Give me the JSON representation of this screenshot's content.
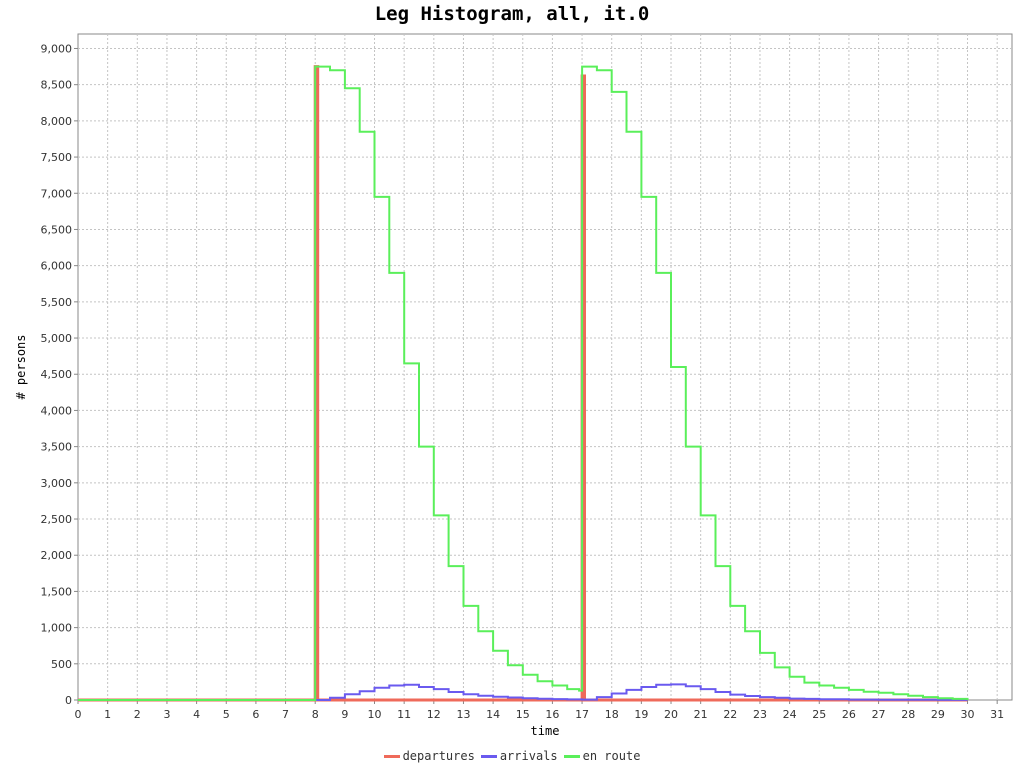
{
  "chart_data": {
    "type": "line",
    "title": "Leg Histogram, all, it.0",
    "xlabel": "time",
    "ylabel": "# persons",
    "xlim": [
      0,
      31.5
    ],
    "ylim": [
      0,
      9200
    ],
    "x_ticks": [
      0,
      1,
      2,
      3,
      4,
      5,
      6,
      7,
      8,
      9,
      10,
      11,
      12,
      13,
      14,
      15,
      16,
      17,
      18,
      19,
      20,
      21,
      22,
      23,
      24,
      25,
      26,
      27,
      28,
      29,
      30,
      31
    ],
    "y_ticks": [
      0,
      500,
      1000,
      1500,
      2000,
      2500,
      3000,
      3500,
      4000,
      4500,
      5000,
      5500,
      6000,
      6500,
      7000,
      7500,
      8000,
      8500,
      9000
    ],
    "y_tick_labels": [
      "0",
      "500",
      "1,000",
      "1,500",
      "2,000",
      "2,500",
      "3,000",
      "3,500",
      "4,000",
      "4,500",
      "5,000",
      "5,500",
      "6,000",
      "6,500",
      "7,000",
      "7,500",
      "8,000",
      "8,500",
      "9,000"
    ],
    "grid": true,
    "legend_position": "bottom-center",
    "series": [
      {
        "name": "departures",
        "color": "#ef6a5a",
        "points": [
          [
            0,
            0
          ],
          [
            8,
            0
          ],
          [
            8,
            8750
          ],
          [
            8.083,
            8750
          ],
          [
            8.083,
            0
          ],
          [
            17,
            0
          ],
          [
            17,
            8620
          ],
          [
            17.083,
            8620
          ],
          [
            17.083,
            0
          ],
          [
            30,
            0
          ]
        ]
      },
      {
        "name": "arrivals",
        "color": "#6a5aef",
        "points": [
          [
            0,
            0
          ],
          [
            8,
            0
          ],
          [
            8.5,
            30
          ],
          [
            9,
            80
          ],
          [
            9.5,
            120
          ],
          [
            10,
            170
          ],
          [
            10.5,
            200
          ],
          [
            11,
            210
          ],
          [
            11.5,
            180
          ],
          [
            12,
            150
          ],
          [
            12.5,
            110
          ],
          [
            13,
            80
          ],
          [
            13.5,
            60
          ],
          [
            14,
            45
          ],
          [
            14.5,
            35
          ],
          [
            15,
            25
          ],
          [
            15.5,
            18
          ],
          [
            16,
            12
          ],
          [
            16.5,
            8
          ],
          [
            17,
            5
          ],
          [
            17.5,
            40
          ],
          [
            18,
            90
          ],
          [
            18.5,
            140
          ],
          [
            19,
            180
          ],
          [
            19.5,
            210
          ],
          [
            20,
            215
          ],
          [
            20.5,
            190
          ],
          [
            21,
            150
          ],
          [
            21.5,
            110
          ],
          [
            22,
            75
          ],
          [
            22.5,
            55
          ],
          [
            23,
            40
          ],
          [
            23.5,
            30
          ],
          [
            24,
            20
          ],
          [
            24.5,
            15
          ],
          [
            25,
            10
          ],
          [
            26,
            6
          ],
          [
            27,
            4
          ],
          [
            28,
            3
          ],
          [
            29,
            2
          ],
          [
            30,
            0
          ]
        ]
      },
      {
        "name": "en route",
        "color": "#5aef5a",
        "points": [
          [
            0,
            0
          ],
          [
            8,
            0
          ],
          [
            8,
            8750
          ],
          [
            8.5,
            8700
          ],
          [
            9,
            8450
          ],
          [
            9.5,
            7850
          ],
          [
            10,
            6950
          ],
          [
            10.5,
            5900
          ],
          [
            11,
            4650
          ],
          [
            11.5,
            3500
          ],
          [
            12,
            2550
          ],
          [
            12.5,
            1850
          ],
          [
            13,
            1300
          ],
          [
            13.5,
            950
          ],
          [
            14,
            680
          ],
          [
            14.5,
            480
          ],
          [
            15,
            350
          ],
          [
            15.5,
            260
          ],
          [
            16,
            200
          ],
          [
            16.5,
            150
          ],
          [
            16.9,
            130
          ],
          [
            17,
            8750
          ],
          [
            17.5,
            8700
          ],
          [
            18,
            8400
          ],
          [
            18.5,
            7850
          ],
          [
            19,
            6950
          ],
          [
            19.5,
            5900
          ],
          [
            20,
            4600
          ],
          [
            20.5,
            3500
          ],
          [
            21,
            2550
          ],
          [
            21.5,
            1850
          ],
          [
            22,
            1300
          ],
          [
            22.5,
            950
          ],
          [
            23,
            650
          ],
          [
            23.5,
            450
          ],
          [
            24,
            320
          ],
          [
            24.5,
            240
          ],
          [
            25,
            200
          ],
          [
            25.5,
            170
          ],
          [
            26,
            140
          ],
          [
            26.5,
            115
          ],
          [
            27,
            100
          ],
          [
            27.5,
            80
          ],
          [
            28,
            60
          ],
          [
            28.5,
            40
          ],
          [
            29,
            25
          ],
          [
            29.5,
            15
          ],
          [
            30,
            0
          ]
        ]
      }
    ]
  }
}
